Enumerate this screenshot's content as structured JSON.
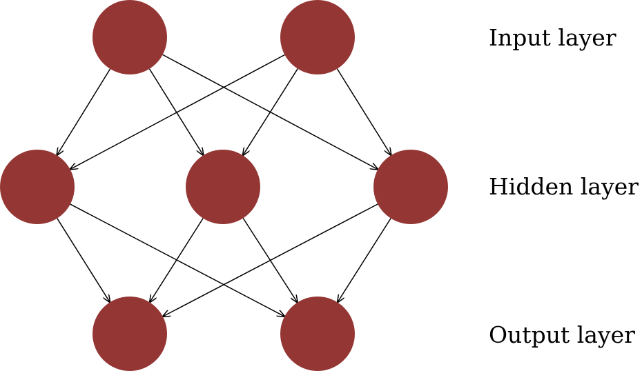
{
  "diagram": {
    "node_color": "#943634",
    "edge_color": "#000000",
    "layers": [
      {
        "id": "input",
        "label": "Input layer",
        "node_count": 2
      },
      {
        "id": "hidden",
        "label": "Hidden layer",
        "node_count": 3
      },
      {
        "id": "output",
        "label": "Output layer",
        "node_count": 2
      }
    ],
    "edges": [
      {
        "from": "input-0",
        "to": "hidden-0"
      },
      {
        "from": "input-0",
        "to": "hidden-1"
      },
      {
        "from": "input-0",
        "to": "hidden-2"
      },
      {
        "from": "input-1",
        "to": "hidden-0"
      },
      {
        "from": "input-1",
        "to": "hidden-1"
      },
      {
        "from": "input-1",
        "to": "hidden-2"
      },
      {
        "from": "hidden-0",
        "to": "output-0"
      },
      {
        "from": "hidden-0",
        "to": "output-1"
      },
      {
        "from": "hidden-1",
        "to": "output-0"
      },
      {
        "from": "hidden-1",
        "to": "output-1"
      },
      {
        "from": "hidden-2",
        "to": "output-0"
      },
      {
        "from": "hidden-2",
        "to": "output-1"
      }
    ]
  }
}
